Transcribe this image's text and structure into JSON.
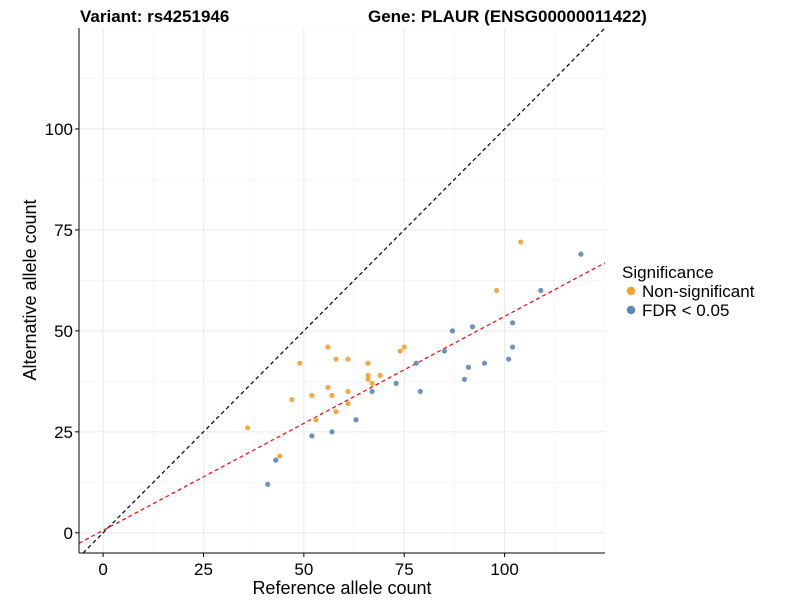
{
  "chart_data": {
    "type": "scatter",
    "title_left": "Variant: rs4251946",
    "title_right": "Gene: PLAUR (ENSG00000011422)",
    "xlabel": "Reference allele count",
    "ylabel": "Alternative allele count",
    "xlim": [
      -6,
      125
    ],
    "ylim": [
      -5,
      125
    ],
    "xticks": [
      0,
      25,
      50,
      75,
      100
    ],
    "yticks": [
      0,
      25,
      50,
      75,
      100
    ],
    "grid": true,
    "legend": {
      "title": "Significance",
      "position": "right"
    },
    "reference_lines": [
      {
        "name": "identity",
        "slope": 1,
        "intercept": 0,
        "color": "#000000",
        "dash": true
      },
      {
        "name": "fit",
        "slope": 0.53,
        "intercept": 0.6,
        "color": "#ff0000",
        "dash": true
      }
    ],
    "series": [
      {
        "name": "Non-significant",
        "color": "#f4a030",
        "points": [
          [
            36,
            26
          ],
          [
            44,
            19
          ],
          [
            47,
            33
          ],
          [
            49,
            42
          ],
          [
            52,
            34
          ],
          [
            53,
            28
          ],
          [
            56,
            36
          ],
          [
            56,
            46
          ],
          [
            57,
            34
          ],
          [
            58,
            30
          ],
          [
            58,
            43
          ],
          [
            61,
            35
          ],
          [
            61,
            43
          ],
          [
            61,
            32
          ],
          [
            66,
            42
          ],
          [
            66,
            39
          ],
          [
            66,
            38
          ],
          [
            67,
            37
          ],
          [
            69,
            39
          ],
          [
            74,
            45
          ],
          [
            75,
            46
          ],
          [
            98,
            60
          ],
          [
            104,
            72
          ]
        ]
      },
      {
        "name": "FDR < 0.05",
        "color": "#5b86b8",
        "points": [
          [
            41,
            12
          ],
          [
            43,
            18
          ],
          [
            52,
            24
          ],
          [
            57,
            25
          ],
          [
            63,
            28
          ],
          [
            67,
            35
          ],
          [
            73,
            37
          ],
          [
            78,
            42
          ],
          [
            79,
            35
          ],
          [
            85,
            45
          ],
          [
            87,
            50
          ],
          [
            90,
            38
          ],
          [
            91,
            41
          ],
          [
            92,
            51
          ],
          [
            95,
            42
          ],
          [
            101,
            43
          ],
          [
            102,
            52
          ],
          [
            102,
            46
          ],
          [
            109,
            60
          ],
          [
            119,
            69
          ]
        ]
      }
    ]
  }
}
